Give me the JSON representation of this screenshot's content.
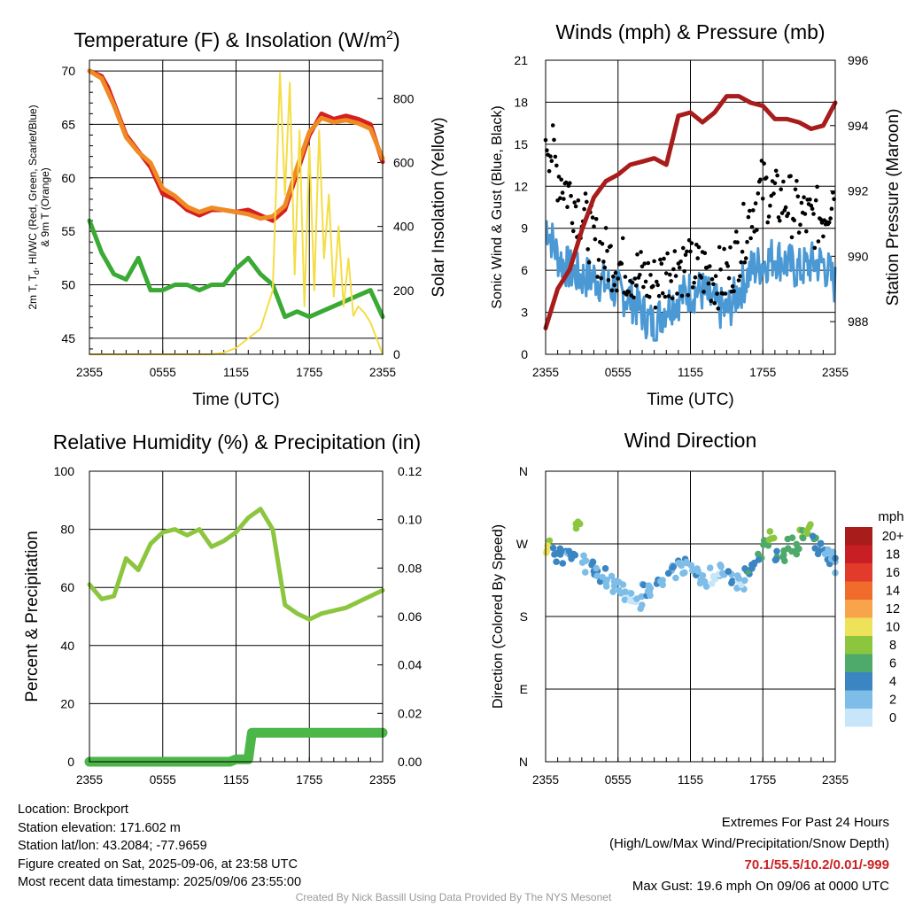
{
  "chart_data": [
    {
      "type": "line",
      "title": "Temperature (F) & Insolation (W/m²)",
      "xlabel": "Time (UTC)",
      "ylabel": "2m T, Td, HI/WC (Red, Green, Scarlet/Blue) & 9m T (Orange)",
      "y2label": "Solar Insolation (Yellow)",
      "x_ticks": [
        "2355",
        "0555",
        "1155",
        "1755",
        "2355"
      ],
      "ylim": [
        43.5,
        71
      ],
      "y2lim": [
        0,
        920
      ],
      "y_ticks": [
        45,
        50,
        55,
        60,
        65,
        70
      ],
      "y2_ticks": [
        0,
        200,
        400,
        600,
        800
      ],
      "grid": true,
      "series": [
        {
          "key": "t2m",
          "axis": "y",
          "color": "#d42020",
          "x": [
            0,
            1,
            1.5,
            2,
            3,
            4,
            5,
            6,
            7,
            8,
            9,
            10,
            11,
            12,
            13,
            14,
            15,
            16,
            17,
            18,
            19,
            20,
            21,
            22,
            23,
            24
          ],
          "values": [
            70,
            69.5,
            68.5,
            67,
            64,
            62.5,
            61,
            58.5,
            58,
            57,
            56.5,
            57,
            57,
            56.8,
            57,
            56.5,
            56,
            57,
            60.5,
            64,
            66,
            65.5,
            65.8,
            65.5,
            65,
            61.5
          ]
        },
        {
          "key": "t9m",
          "axis": "y",
          "color": "#f08a24",
          "x": [
            0,
            1,
            2,
            3,
            4,
            5,
            6,
            7,
            8,
            9,
            10,
            11,
            12,
            13,
            14,
            15,
            16,
            17,
            18,
            19,
            20,
            21,
            22,
            23,
            24
          ],
          "values": [
            70,
            69.3,
            66.8,
            63.8,
            62.4,
            61.4,
            59,
            58.3,
            57.3,
            56.8,
            57.2,
            57,
            56.8,
            56.6,
            56.2,
            56.4,
            57.4,
            61,
            64.3,
            65.6,
            65.2,
            65.4,
            65.1,
            64.6,
            61.8
          ]
        },
        {
          "key": "td",
          "axis": "y",
          "color": "#3aaa35",
          "x": [
            0,
            1,
            2,
            3,
            4,
            5,
            6,
            7,
            8,
            9,
            10,
            11,
            12,
            13,
            14,
            15,
            16,
            17,
            18,
            19,
            20,
            21,
            22,
            23,
            24
          ],
          "values": [
            56,
            53,
            51,
            50.5,
            52.5,
            49.5,
            49.5,
            50,
            50,
            49.5,
            50,
            50,
            51.5,
            52.5,
            51,
            50,
            47,
            47.5,
            47,
            47.5,
            48,
            48.5,
            49,
            49.5,
            47
          ]
        },
        {
          "key": "solar",
          "axis": "y2",
          "color": "#f5dd45",
          "x": [
            0,
            2,
            4,
            6,
            8,
            10,
            11,
            12,
            13,
            14,
            15,
            15.6,
            16,
            16.4,
            16.8,
            17.2,
            17.6,
            18,
            18.4,
            18.8,
            19.2,
            19.6,
            20,
            20.4,
            20.8,
            21.2,
            21.6,
            22,
            22.5,
            23,
            23.5,
            24
          ],
          "values": [
            0,
            0,
            0,
            0,
            0,
            0,
            5,
            20,
            50,
            80,
            200,
            880,
            500,
            850,
            250,
            700,
            150,
            650,
            200,
            700,
            300,
            500,
            180,
            400,
            150,
            300,
            120,
            150,
            130,
            100,
            50,
            0
          ]
        }
      ]
    },
    {
      "type": "line",
      "title": "Winds (mph) & Pressure (mb)",
      "xlabel": "Time (UTC)",
      "ylabel": "Sonic Wind & Gust (Blue, Black)",
      "y2label": "Station Pressure (Maroon)",
      "x_ticks": [
        "2355",
        "0555",
        "1155",
        "1755",
        "2355"
      ],
      "ylim": [
        0,
        21
      ],
      "y2lim": [
        987,
        996
      ],
      "y_ticks": [
        0,
        3,
        6,
        9,
        12,
        15,
        18,
        21
      ],
      "y2_ticks": [
        988,
        990,
        992,
        994,
        996
      ],
      "grid": true,
      "series": [
        {
          "key": "wind",
          "axis": "y",
          "color": "#4a98d4",
          "x": [
            0,
            1,
            2,
            3,
            4,
            5,
            6,
            7,
            8,
            9,
            10,
            11,
            12,
            13,
            14,
            15,
            16,
            17,
            18,
            19,
            20,
            21,
            22,
            23,
            24
          ],
          "values": [
            9.5,
            7,
            6,
            5.5,
            5.5,
            5,
            4.5,
            4,
            3,
            2,
            3.5,
            4,
            4.5,
            4.5,
            3.5,
            3,
            4.5,
            6,
            6.5,
            7,
            6.5,
            6,
            6.5,
            6.5,
            5
          ]
        },
        {
          "key": "gust",
          "axis": "y",
          "color": "#000000",
          "x": [
            0,
            1,
            2,
            3,
            4,
            5,
            6,
            7,
            8,
            9,
            10,
            11,
            12,
            13,
            14,
            15,
            16,
            17,
            18,
            19,
            20,
            21,
            22,
            23,
            24
          ],
          "values": [
            16,
            13,
            11.5,
            10,
            8,
            7,
            6.5,
            6,
            5.5,
            5,
            6,
            6.5,
            6,
            6,
            5.5,
            5.5,
            7.5,
            10,
            12,
            11,
            11,
            10,
            9.5,
            10,
            12
          ]
        },
        {
          "key": "pressure",
          "axis": "y2",
          "color": "#a81c1c",
          "x": [
            0,
            1,
            2,
            3,
            4,
            5,
            6,
            7,
            8,
            9,
            10,
            11,
            12,
            13,
            14,
            15,
            16,
            17,
            18,
            19,
            20,
            21,
            22,
            23,
            24
          ],
          "values": [
            987.8,
            989,
            989.6,
            990.8,
            991.8,
            992.3,
            992.5,
            992.8,
            992.9,
            993,
            992.8,
            994.3,
            994.4,
            994.1,
            994.4,
            994.9,
            994.9,
            994.7,
            994.6,
            994.2,
            994.2,
            994.1,
            993.9,
            994,
            994.7
          ]
        }
      ]
    },
    {
      "type": "line",
      "title": "Relative Humidity (%) & Precipitation (in)",
      "xlabel": "",
      "ylabel": "Percent & Precipitation",
      "x_ticks": [
        "2355",
        "0555",
        "1155",
        "1755",
        "2355"
      ],
      "ylim": [
        0,
        100
      ],
      "y2lim": [
        0,
        0.12
      ],
      "y_ticks": [
        0,
        20,
        40,
        60,
        80,
        100
      ],
      "y2_ticks": [
        "0.00",
        "0.02",
        "0.04",
        "0.06",
        "0.08",
        "0.10",
        "0.12"
      ],
      "grid": true,
      "series": [
        {
          "key": "rh",
          "axis": "y",
          "color": "#8cc63f",
          "x": [
            0,
            1,
            2,
            3,
            4,
            5,
            6,
            7,
            8,
            9,
            10,
            11,
            12,
            13,
            14,
            15,
            16,
            17,
            18,
            19,
            20,
            21,
            22,
            23,
            24
          ],
          "values": [
            61,
            56,
            57,
            70,
            66,
            75,
            79,
            80,
            78,
            80,
            74,
            76,
            79,
            84,
            87,
            80,
            54,
            51,
            49,
            51,
            52,
            53,
            55,
            57,
            59
          ]
        },
        {
          "key": "precip",
          "axis": "y2",
          "color": "#4cb648",
          "x": [
            0,
            11.5,
            12,
            13,
            13.3,
            14,
            24
          ],
          "values": [
            0,
            0,
            0.001,
            0.001,
            0.012,
            0.012,
            0.012
          ]
        }
      ]
    },
    {
      "type": "scatter",
      "title": "Wind Direction",
      "xlabel": "",
      "ylabel": "Direction (Colored By Speed)",
      "x_ticks": [
        "2355",
        "0555",
        "1155",
        "1755",
        "2355"
      ],
      "y_ticks": [
        "N",
        "E",
        "S",
        "W",
        "N"
      ],
      "ylim": [
        0,
        360
      ],
      "grid": true,
      "legend": {
        "title": "mph",
        "position": "right",
        "labels": [
          "20+",
          "18",
          "16",
          "14",
          "12",
          "10",
          "8",
          "6",
          "4",
          "2",
          "0"
        ],
        "colors": [
          "#a81c1c",
          "#c81f25",
          "#e23a2b",
          "#f06b2c",
          "#f7a44a",
          "#ede25a",
          "#8cc63f",
          "#4daa6a",
          "#3a85c2",
          "#7dbde8",
          "#c7e6f9"
        ]
      },
      "series": [
        {
          "key": "direction",
          "x": [
            0,
            0.5,
            1,
            1.5,
            2,
            2.5,
            3,
            3.5,
            4,
            4.5,
            5,
            5.5,
            6,
            6.5,
            7,
            7.5,
            8,
            8.5,
            9,
            9.5,
            10,
            10.5,
            11,
            11.5,
            12,
            12.5,
            13,
            13.5,
            14,
            14.5,
            15,
            15.5,
            16,
            16.5,
            17,
            17.5,
            18,
            18.5,
            19,
            19.5,
            20,
            20.5,
            21,
            21.5,
            22,
            22.5,
            23,
            23.5,
            24
          ],
          "values": [
            265,
            258,
            256,
            255,
            258,
            290,
            245,
            245,
            235,
            232,
            225,
            220,
            215,
            210,
            205,
            200,
            210,
            215,
            225,
            230,
            235,
            238,
            240,
            245,
            238,
            232,
            228,
            230,
            235,
            240,
            230,
            225,
            218,
            230,
            240,
            260,
            270,
            275,
            250,
            255,
            268,
            262,
            280,
            285,
            272,
            262,
            255,
            252,
            245
          ],
          "speeds": [
            10,
            5,
            5,
            4,
            5,
            9,
            4,
            4,
            4,
            4,
            3,
            3,
            2,
            2,
            2,
            3,
            4,
            3,
            4,
            4,
            4,
            4,
            3,
            4,
            4,
            3,
            3,
            2,
            2,
            3,
            4,
            2,
            2,
            6,
            5,
            6,
            7,
            8,
            6,
            7,
            7,
            6,
            8,
            9,
            6,
            5,
            4,
            4,
            4
          ]
        }
      ]
    }
  ],
  "info": {
    "location": "Location: Brockport",
    "elevation": "Station elevation: 171.602 m",
    "latlon": "Station lat/lon: 43.2084; -77.9659",
    "created": "Figure created on Sat, 2025-09-06, at 23:58 UTC",
    "recent": "Most recent data timestamp: 2025/09/06 23:55:00"
  },
  "extremes": {
    "heading": "Extremes For Past 24 Hours",
    "subheading": "(High/Low/Max Wind/Precipitation/Snow Depth)",
    "values": "70.1/55.5/10.2/0.01/-999",
    "max_gust": "Max Gust: 19.6 mph On 09/06 at 0000 UTC"
  },
  "footer": "Created By Nick Bassill Using Data Provided By The NYS Mesonet"
}
